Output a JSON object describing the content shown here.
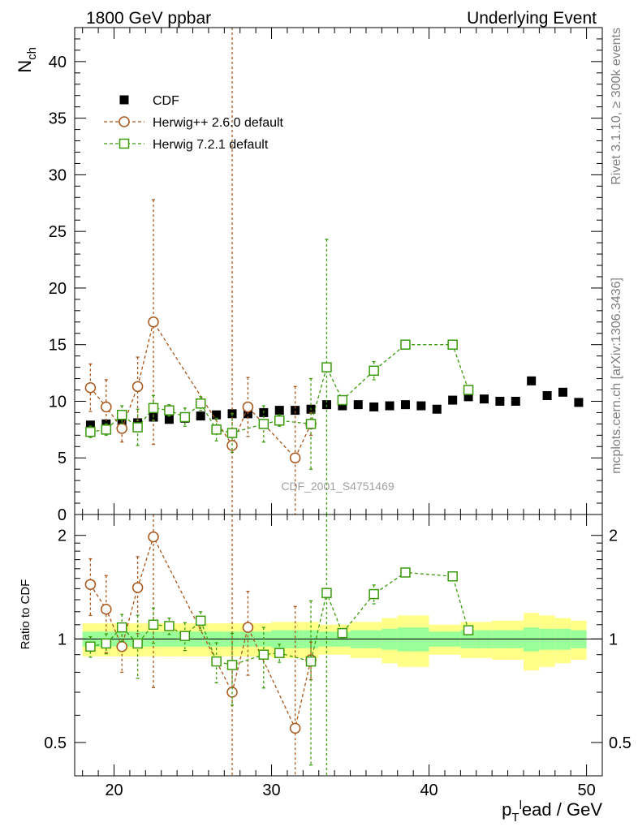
{
  "header": {
    "left_title": "1800 GeV ppbar",
    "right_title": "Underlying Event",
    "side_note_top": "Rivet 3.1.10, ≥ 300k events",
    "side_note_bottom": "mcplots.cern.ch [arXiv:1306.3436]",
    "watermark": "CDF_2001_S4751469"
  },
  "chart_data": [
    {
      "type": "scatter",
      "panel": "main",
      "ylabel": "N_ch",
      "xlabel": "p_T^lead / GeV",
      "xlim": [
        17.5,
        51
      ],
      "ylim": [
        0,
        43
      ],
      "xticks": [
        20,
        30,
        40,
        50
      ],
      "yticks": [
        0,
        5,
        10,
        15,
        20,
        25,
        30,
        35,
        40
      ],
      "legend_position": "top-left",
      "series": [
        {
          "name": "CDF",
          "color": "#000000",
          "marker": "filled-square",
          "x": [
            18.5,
            19.5,
            20.5,
            21.5,
            22.5,
            23.5,
            24.5,
            25.5,
            26.5,
            27.5,
            28.5,
            29.5,
            30.5,
            31.5,
            32.5,
            33.5,
            34.5,
            35.5,
            36.5,
            37.5,
            38.5,
            39.5,
            40.5,
            41.5,
            42.5,
            43.5,
            44.5,
            45.5,
            46.5,
            47.5,
            48.5,
            49.5
          ],
          "y": [
            7.9,
            8.0,
            8.2,
            8.1,
            8.6,
            8.4,
            8.5,
            8.7,
            8.8,
            8.9,
            8.9,
            9.0,
            9.2,
            9.2,
            9.3,
            9.7,
            9.6,
            9.7,
            9.5,
            9.6,
            9.7,
            9.6,
            9.3,
            10.1,
            10.4,
            10.2,
            10.0,
            10.0,
            11.8,
            10.5,
            10.8,
            9.9
          ]
        },
        {
          "name": "Herwig++ 2.6.0 default",
          "color": "#a8561a",
          "marker": "open-circle",
          "x": [
            18.5,
            19.5,
            20.5,
            21.5,
            22.5,
            27.5,
            28.5,
            31.5,
            32.5
          ],
          "y": [
            11.2,
            9.5,
            7.6,
            11.3,
            17.0,
            6.1,
            9.5,
            5.0,
            8.0
          ],
          "yerr_low": [
            2.1,
            2.4,
            1.2,
            3.0,
            10.8,
            40.0,
            2.6,
            40.0,
            1.0
          ],
          "yerr_high": [
            2.1,
            2.4,
            1.2,
            2.6,
            10.8,
            40.0,
            2.6,
            6.3,
            1.0
          ]
        },
        {
          "name": "Herwig 7.2.1 default",
          "color": "#3b9a0c",
          "marker": "open-square",
          "x": [
            18.5,
            19.5,
            20.5,
            21.5,
            22.5,
            23.5,
            24.5,
            25.5,
            26.5,
            27.5,
            29.5,
            30.5,
            32.5,
            33.5,
            34.5,
            36.5,
            38.5,
            41.5,
            42.5
          ],
          "y": [
            7.3,
            7.5,
            8.8,
            7.7,
            9.4,
            9.2,
            8.6,
            9.8,
            7.5,
            7.2,
            8.0,
            8.3,
            8.0,
            13.0,
            10.1,
            12.7,
            15.0,
            15.0,
            11.0
          ],
          "yerr_low": [
            0.5,
            0.5,
            0.8,
            1.6,
            1.1,
            0.5,
            0.8,
            0.6,
            1.0,
            1.7,
            1.6,
            0.5,
            4.0,
            40.0,
            0.3,
            0.8,
            0.0,
            0.0,
            0.0
          ],
          "yerr_high": [
            0.5,
            0.5,
            0.8,
            1.6,
            1.1,
            0.5,
            0.8,
            0.6,
            1.0,
            1.7,
            1.6,
            0.5,
            4.0,
            11.3,
            0.3,
            0.8,
            0.0,
            0.0,
            0.0
          ]
        }
      ]
    },
    {
      "type": "scatter",
      "panel": "ratio",
      "ylabel": "Ratio to CDF",
      "xlabel": "p_T^lead / GeV",
      "xlim": [
        17.5,
        51
      ],
      "ylim": [
        0.4,
        2.3
      ],
      "scale": "log",
      "yticks": [
        0.5,
        1,
        2
      ],
      "reference_line": 1,
      "band_inner_color": "#99ff99",
      "band_outer_color": "#ffff88",
      "bands": {
        "x": [
          18.5,
          19.5,
          20.5,
          21.5,
          22.5,
          23.5,
          24.5,
          25.5,
          26.5,
          27.5,
          28.5,
          29.5,
          30.5,
          31.5,
          32.5,
          33.5,
          34.5,
          35.5,
          36.5,
          37.5,
          38.5,
          39.5,
          40.5,
          41.5,
          42.5,
          43.5,
          44.5,
          45.5,
          46.5,
          47.5,
          48.5,
          49.5
        ],
        "inner": [
          0.05,
          0.05,
          0.05,
          0.05,
          0.05,
          0.05,
          0.05,
          0.05,
          0.05,
          0.05,
          0.05,
          0.05,
          0.06,
          0.06,
          0.06,
          0.05,
          0.05,
          0.06,
          0.06,
          0.07,
          0.08,
          0.08,
          0.05,
          0.05,
          0.06,
          0.06,
          0.06,
          0.06,
          0.08,
          0.07,
          0.07,
          0.06
        ],
        "outer": [
          0.11,
          0.11,
          0.11,
          0.11,
          0.11,
          0.11,
          0.11,
          0.11,
          0.11,
          0.11,
          0.11,
          0.11,
          0.12,
          0.12,
          0.12,
          0.1,
          0.1,
          0.12,
          0.12,
          0.15,
          0.17,
          0.17,
          0.1,
          0.1,
          0.12,
          0.12,
          0.13,
          0.13,
          0.19,
          0.17,
          0.15,
          0.13
        ]
      },
      "series": [
        {
          "name": "Herwig++ 2.6.0 default",
          "color": "#a8561a",
          "marker": "open-circle",
          "x": [
            18.5,
            19.5,
            20.5,
            21.5,
            22.5,
            27.5,
            28.5,
            31.5,
            32.5
          ],
          "y": [
            1.44,
            1.22,
            0.95,
            1.41,
            1.98,
            0.7,
            1.08,
            0.55,
            0.87
          ]
        },
        {
          "name": "Herwig 7.2.1 default",
          "color": "#3b9a0c",
          "marker": "open-square",
          "x": [
            18.5,
            19.5,
            20.5,
            21.5,
            22.5,
            23.5,
            24.5,
            25.5,
            26.5,
            27.5,
            29.5,
            30.5,
            32.5,
            33.5,
            34.5,
            36.5,
            38.5,
            41.5,
            42.5
          ],
          "y": [
            0.95,
            0.97,
            1.08,
            0.97,
            1.1,
            1.09,
            1.02,
            1.13,
            0.86,
            0.84,
            0.9,
            0.91,
            0.86,
            1.36,
            1.04,
            1.35,
            1.56,
            1.52,
            1.06
          ]
        }
      ]
    }
  ]
}
